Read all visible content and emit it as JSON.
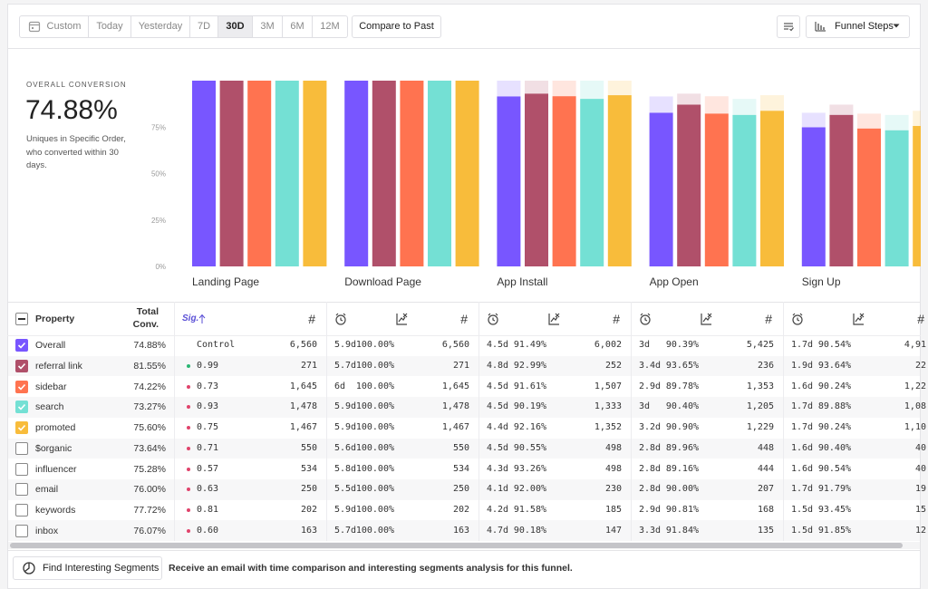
{
  "toolbar": {
    "date_ranges": [
      "Custom",
      "Today",
      "Yesterday",
      "7D",
      "30D",
      "3M",
      "6M",
      "12M"
    ],
    "compare": "Compare to Past",
    "view": "Funnel Steps"
  },
  "summary": {
    "label": "OVERALL CONVERSION",
    "value": "74.88%",
    "description": "Uniques in Specific Order, who converted within 30 days."
  },
  "chart_data": {
    "type": "bar",
    "categories": [
      "Landing Page",
      "Download Page",
      "App Install",
      "App Open",
      "Sign Up"
    ],
    "series": [
      {
        "name": "Overall",
        "color": "#7856ff",
        "values": [
          100,
          100,
          91.49,
          82.7,
          74.88
        ]
      },
      {
        "name": "referral link",
        "color": "#b0506a",
        "values": [
          100,
          100,
          92.99,
          87.08,
          81.55
        ]
      },
      {
        "name": "sidebar",
        "color": "#ff7350",
        "values": [
          100,
          100,
          91.61,
          82.25,
          74.22
        ]
      },
      {
        "name": "search",
        "color": "#74e0d4",
        "values": [
          100,
          100,
          90.19,
          81.53,
          73.27
        ]
      },
      {
        "name": "promoted",
        "color": "#f8bc3b",
        "values": [
          100,
          100,
          92.16,
          83.77,
          75.6
        ]
      }
    ],
    "ylim": [
      0,
      100
    ],
    "yticks": [
      {
        "value": 0,
        "label": "0%"
      },
      {
        "value": 25,
        "label": "25%"
      },
      {
        "value": 50,
        "label": "50%"
      },
      {
        "value": 75,
        "label": "75%"
      }
    ],
    "grid": false
  },
  "table": {
    "headers": {
      "property": "Property",
      "total": "Total Conv.",
      "sig": "Sig.",
      "count": "#"
    },
    "rows": [
      [
        "Overall",
        "74.88%",
        "Control",
        "6,560",
        "5.9d",
        "100.00%",
        "6,560",
        "4.5d",
        "91.49%",
        "6,002",
        "3d",
        "90.39%",
        "5,425",
        "1.7d",
        "90.54%",
        "4,91"
      ],
      [
        "referral link",
        "81.55%",
        "0.99",
        "271",
        "5.7d",
        "100.00%",
        "271",
        "4.8d",
        "92.99%",
        "252",
        "3.4d",
        "93.65%",
        "236",
        "1.9d",
        "93.64%",
        "22"
      ],
      [
        "sidebar",
        "74.22%",
        "0.73",
        "1,645",
        "6d",
        "100.00%",
        "1,645",
        "4.5d",
        "91.61%",
        "1,507",
        "2.9d",
        "89.78%",
        "1,353",
        "1.6d",
        "90.24%",
        "1,22"
      ],
      [
        "search",
        "73.27%",
        "0.93",
        "1,478",
        "5.9d",
        "100.00%",
        "1,478",
        "4.5d",
        "90.19%",
        "1,333",
        "3d",
        "90.40%",
        "1,205",
        "1.7d",
        "89.88%",
        "1,08"
      ],
      [
        "promoted",
        "75.60%",
        "0.75",
        "1,467",
        "5.9d",
        "100.00%",
        "1,467",
        "4.4d",
        "92.16%",
        "1,352",
        "3.2d",
        "90.90%",
        "1,229",
        "1.7d",
        "90.24%",
        "1,10"
      ],
      [
        "$organic",
        "73.64%",
        "0.71",
        "550",
        "5.6d",
        "100.00%",
        "550",
        "4.5d",
        "90.55%",
        "498",
        "2.8d",
        "89.96%",
        "448",
        "1.6d",
        "90.40%",
        "40"
      ],
      [
        "influencer",
        "75.28%",
        "0.57",
        "534",
        "5.8d",
        "100.00%",
        "534",
        "4.3d",
        "93.26%",
        "498",
        "2.8d",
        "89.16%",
        "444",
        "1.6d",
        "90.54%",
        "40"
      ],
      [
        "email",
        "76.00%",
        "0.63",
        "250",
        "5.5d",
        "100.00%",
        "250",
        "4.1d",
        "92.00%",
        "230",
        "2.8d",
        "90.00%",
        "207",
        "1.7d",
        "91.79%",
        "19"
      ],
      [
        "keywords",
        "77.72%",
        "0.81",
        "202",
        "5.9d",
        "100.00%",
        "202",
        "4.2d",
        "91.58%",
        "185",
        "2.9d",
        "90.81%",
        "168",
        "1.5d",
        "93.45%",
        "15"
      ],
      [
        "inbox",
        "76.07%",
        "0.60",
        "163",
        "5.7d",
        "100.00%",
        "163",
        "4.7d",
        "90.18%",
        "147",
        "3.3d",
        "91.84%",
        "135",
        "1.5d",
        "91.85%",
        "12"
      ]
    ]
  },
  "footer": {
    "button": "Find Interesting Segments",
    "message": "Receive an email with time comparison and interesting segments analysis for this funnel."
  }
}
